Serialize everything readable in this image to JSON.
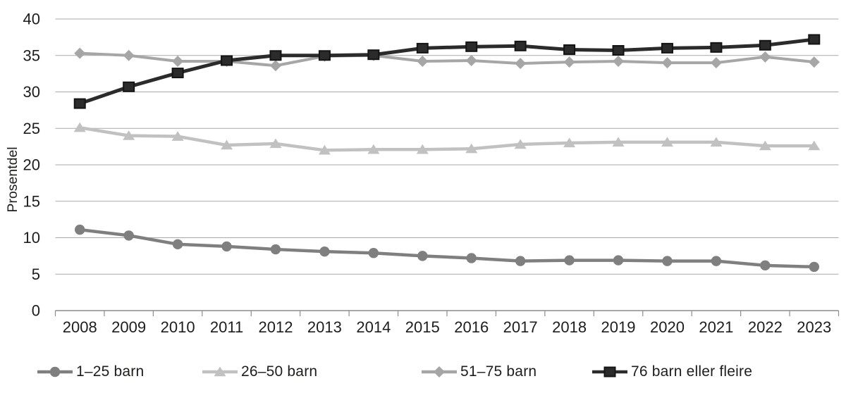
{
  "figure": {
    "background": "#ffffff",
    "text_color": "#1d1d1b",
    "grid_color": "#a9a9a9",
    "axis_color": "#8c8c8c"
  },
  "chart_data": {
    "type": "line",
    "title": "",
    "xlabel": "",
    "ylabel": "Prosentdel",
    "ylim": [
      0,
      40
    ],
    "y_ticks": [
      0,
      5,
      10,
      15,
      20,
      25,
      30,
      35,
      40
    ],
    "grid": true,
    "legend_position": "bottom",
    "categories": [
      "2008",
      "2009",
      "2010",
      "2011",
      "2012",
      "2013",
      "2014",
      "2015",
      "2016",
      "2017",
      "2018",
      "2019",
      "2020",
      "2021",
      "2022",
      "2023"
    ],
    "series": [
      {
        "name": "1–25 barn",
        "marker": "circle",
        "color": "#7f7f7f",
        "line_width": 4.5,
        "values": [
          11.1,
          10.3,
          9.1,
          8.8,
          8.4,
          8.1,
          7.9,
          7.5,
          7.2,
          6.8,
          6.9,
          6.9,
          6.8,
          6.8,
          6.2,
          6.0
        ]
      },
      {
        "name": "26–50 barn",
        "marker": "triangle",
        "color": "#c1c1c1",
        "line_width": 4.5,
        "values": [
          25.1,
          24.0,
          23.9,
          22.7,
          22.9,
          22.0,
          22.1,
          22.1,
          22.2,
          22.8,
          23.0,
          23.1,
          23.1,
          23.1,
          22.6,
          22.6
        ]
      },
      {
        "name": "51–75 barn",
        "marker": "diamond",
        "color": "#a6a6a6",
        "line_width": 4,
        "values": [
          35.3,
          35.0,
          34.2,
          34.2,
          33.6,
          34.9,
          35.0,
          34.2,
          34.3,
          33.9,
          34.1,
          34.2,
          34.0,
          34.0,
          34.8,
          34.1
        ]
      },
      {
        "name": "76 barn eller fleire",
        "marker": "square",
        "color": "#2b2b2b",
        "marker_stroke": "#141414",
        "line_width": 5,
        "values": [
          28.4,
          30.7,
          32.6,
          34.3,
          35.0,
          35.0,
          35.1,
          36.0,
          36.2,
          36.3,
          35.8,
          35.7,
          36.0,
          36.1,
          36.4,
          37.2
        ]
      }
    ]
  }
}
